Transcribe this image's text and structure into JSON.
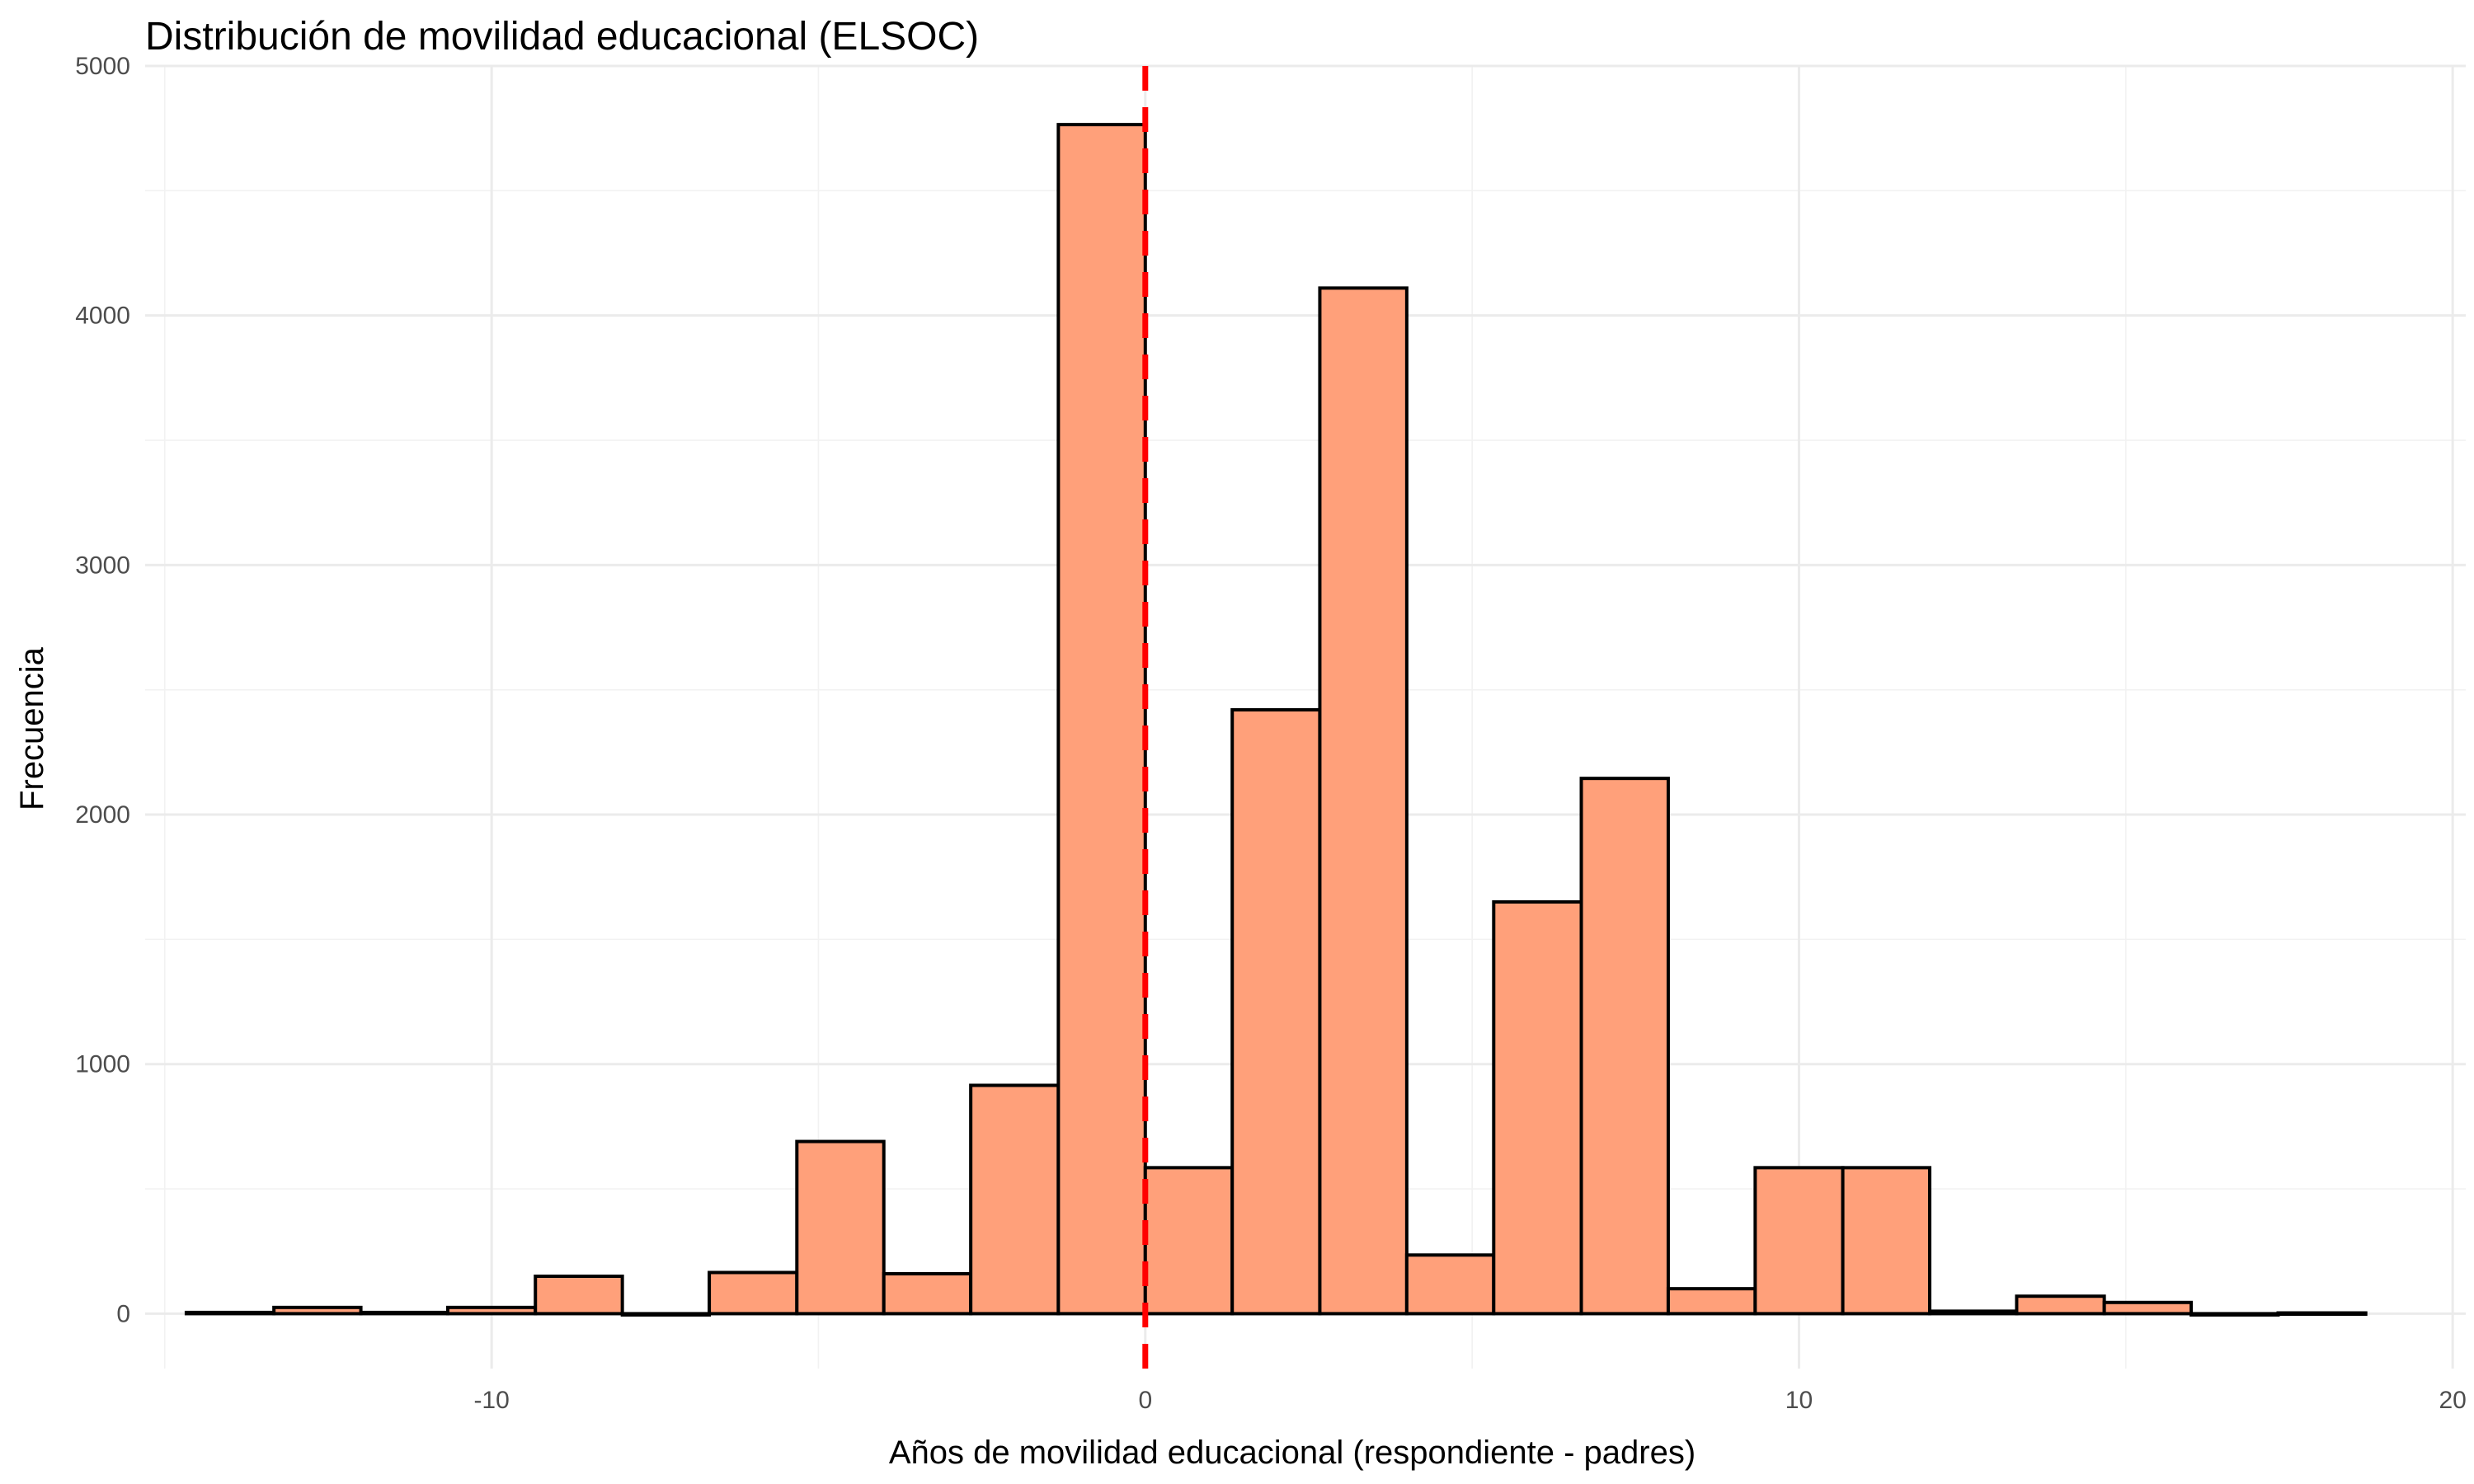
{
  "chart_data": {
    "type": "bar",
    "subtype": "histogram",
    "title": "Distribución de movilidad educacional (ELSOC)",
    "xlabel": "Años de movilidad educacional (respondiente - padres)",
    "ylabel": "Frecuencia",
    "xlim": [
      -15.3,
      20.2
    ],
    "ylim": [
      -220,
      5000
    ],
    "x_ticks": [
      -10,
      0,
      10,
      20
    ],
    "x_tick_labels": [
      "-10",
      "0",
      "10",
      "20"
    ],
    "y_ticks": [
      0,
      1000,
      2000,
      3000,
      4000,
      5000
    ],
    "y_tick_labels": [
      "0",
      "1000",
      "2000",
      "3000",
      "4000",
      "5000"
    ],
    "grid": true,
    "bar_fill": "#ffa07a",
    "bar_outline": "#000000",
    "reference_line": {
      "x": 0,
      "color": "#ff0000",
      "style": "dashed"
    },
    "bins": [
      {
        "x0": -14.67,
        "x1": -13.33,
        "count": 5
      },
      {
        "x0": -13.33,
        "x1": -12.0,
        "count": 25
      },
      {
        "x0": -12.0,
        "x1": -10.67,
        "count": 5
      },
      {
        "x0": -10.67,
        "x1": -9.33,
        "count": 25
      },
      {
        "x0": -9.33,
        "x1": -8.0,
        "count": 150
      },
      {
        "x0": -8.0,
        "x1": -6.67,
        "count": 0
      },
      {
        "x0": -6.67,
        "x1": -5.33,
        "count": 165
      },
      {
        "x0": -5.33,
        "x1": -4.0,
        "count": 690
      },
      {
        "x0": -4.0,
        "x1": -2.67,
        "count": 160
      },
      {
        "x0": -2.67,
        "x1": -1.33,
        "count": 915
      },
      {
        "x0": -1.33,
        "x1": 0.0,
        "count": 4765
      },
      {
        "x0": 0.0,
        "x1": 1.33,
        "count": 585
      },
      {
        "x0": 1.33,
        "x1": 2.67,
        "count": 2420
      },
      {
        "x0": 2.67,
        "x1": 4.0,
        "count": 4110
      },
      {
        "x0": 4.0,
        "x1": 5.33,
        "count": 235
      },
      {
        "x0": 5.33,
        "x1": 6.67,
        "count": 1650
      },
      {
        "x0": 6.67,
        "x1": 8.0,
        "count": 2145
      },
      {
        "x0": 8.0,
        "x1": 9.33,
        "count": 100
      },
      {
        "x0": 9.33,
        "x1": 10.67,
        "count": 585
      },
      {
        "x0": 10.67,
        "x1": 12.0,
        "count": 585
      },
      {
        "x0": 12.0,
        "x1": 13.33,
        "count": 10
      },
      {
        "x0": 13.33,
        "x1": 14.67,
        "count": 70
      },
      {
        "x0": 14.67,
        "x1": 16.0,
        "count": 45
      },
      {
        "x0": 16.0,
        "x1": 17.33,
        "count": 0
      },
      {
        "x0": 17.33,
        "x1": 18.67,
        "count": 3
      }
    ]
  }
}
